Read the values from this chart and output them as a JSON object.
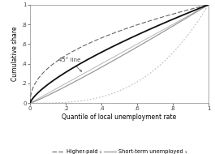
{
  "title": "",
  "xlabel": "Quantile of local unemployment rate",
  "ylabel": "Cumulative share",
  "xlim": [
    0,
    1
  ],
  "ylim": [
    0,
    1
  ],
  "xticks": [
    0,
    0.2,
    0.4,
    0.6,
    0.8,
    1
  ],
  "yticks": [
    0,
    0.2,
    0.4,
    0.6,
    0.8,
    1
  ],
  "xtick_labels": [
    "0",
    ".2",
    ".4",
    ".6",
    ".8",
    "1"
  ],
  "ytick_labels": [
    "0",
    ".2",
    ".4",
    ".6",
    ".8",
    "1"
  ],
  "annotation_text": "45° line",
  "background_color": "#ffffff",
  "axes_color": "#888888",
  "fontsize_ticks": 5,
  "fontsize_labels": 5.5,
  "fontsize_legend": 4.8,
  "fontsize_annotation": 5,
  "line_45_color": "#aaaaaa",
  "higher_paid_color": "#666666",
  "low_paid_color": "#111111",
  "short_unemp_color": "#999999",
  "long_unemp_color": "#bbbbbb",
  "higher_paid_power": 0.45,
  "low_paid_power": 0.72,
  "short_unemp_power": 1.1,
  "long_unemp_power": 3.0
}
